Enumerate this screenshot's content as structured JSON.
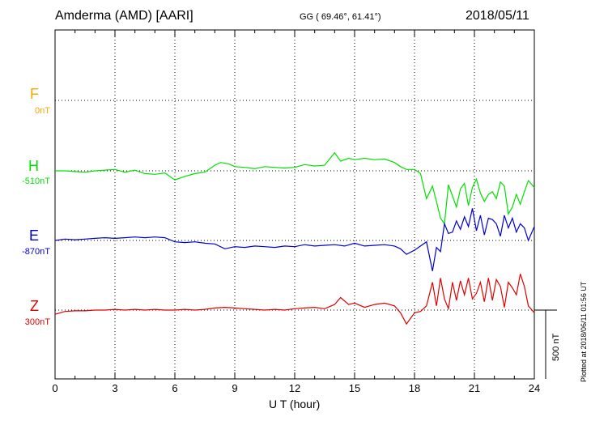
{
  "header": {
    "station": "Amderma (AMD)  [AARI]",
    "coords": "GG ( 69.46°,  61.41°)",
    "date": "2018/05/11"
  },
  "plotted_note": "Plotted at 2018/06/11 01:56 UT",
  "colors": {
    "F": "#f5a800",
    "H": "#00e000",
    "E": "#0000d0",
    "Z": "#e00000"
  },
  "chart_data": {
    "type": "line",
    "xlabel": "U T (hour)",
    "xlim": [
      0,
      24
    ],
    "x_ticks": [
      "0",
      "3",
      "6",
      "9",
      "12",
      "15",
      "18",
      "21",
      "24"
    ],
    "scale_bar_label": "500 nT",
    "components": [
      {
        "name": "F",
        "baseline": "0nT"
      },
      {
        "name": "H",
        "baseline": "-510nT"
      },
      {
        "name": "E",
        "baseline": "-870nT"
      },
      {
        "name": "Z",
        "baseline": "300nT"
      }
    ],
    "series": [
      {
        "name": "H",
        "x": [
          0,
          0.5,
          1,
          1.5,
          2,
          2.5,
          3,
          3.5,
          4,
          4.5,
          5,
          5.5,
          6,
          6.5,
          7,
          7.5,
          8,
          8.3,
          8.7,
          9,
          9.5,
          10,
          10.5,
          11,
          11.5,
          12,
          12.5,
          13,
          13.5,
          14,
          14.3,
          14.7,
          15,
          15.5,
          16,
          16.5,
          17,
          17.3,
          17.6,
          18,
          18.3,
          18.6,
          18.9,
          19.1,
          19.3,
          19.5,
          19.7,
          19.9,
          20.1,
          20.3,
          20.5,
          20.7,
          20.9,
          21.1,
          21.3,
          21.5,
          21.7,
          21.9,
          22.1,
          22.3,
          22.5,
          22.7,
          22.9,
          23.1,
          23.3,
          23.5,
          23.7,
          24
        ],
        "values": [
          0,
          0,
          -5,
          -10,
          0,
          5,
          10,
          -10,
          5,
          -20,
          -25,
          -15,
          -65,
          -40,
          -20,
          -10,
          40,
          60,
          50,
          30,
          25,
          15,
          30,
          25,
          20,
          25,
          45,
          35,
          40,
          130,
          70,
          90,
          80,
          90,
          80,
          85,
          60,
          30,
          10,
          10,
          -20,
          -200,
          -110,
          -220,
          -340,
          -380,
          -100,
          -180,
          -260,
          -130,
          -90,
          -250,
          -120,
          -60,
          -160,
          -220,
          -170,
          -150,
          -200,
          -80,
          -110,
          -310,
          -260,
          -170,
          -240,
          -150,
          -70,
          -120
        ]
      },
      {
        "name": "E",
        "x": [
          0,
          0.5,
          1,
          1.5,
          2,
          2.5,
          3,
          3.5,
          4,
          4.5,
          5,
          5.5,
          6,
          6.5,
          7,
          7.5,
          8,
          8.5,
          9,
          9.5,
          10,
          10.5,
          11,
          11.5,
          12,
          12.5,
          13,
          13.5,
          14,
          14.5,
          15,
          15.5,
          16,
          16.5,
          17,
          17.3,
          17.6,
          18,
          18.3,
          18.6,
          18.9,
          19.1,
          19.3,
          19.5,
          19.7,
          19.9,
          20.1,
          20.3,
          20.5,
          20.7,
          20.9,
          21.1,
          21.3,
          21.5,
          21.7,
          21.9,
          22.1,
          22.3,
          22.5,
          22.7,
          22.9,
          23.1,
          23.3,
          23.5,
          23.7,
          24
        ],
        "values": [
          0,
          10,
          5,
          10,
          15,
          20,
          15,
          20,
          25,
          20,
          25,
          20,
          -10,
          -15,
          -10,
          -20,
          -25,
          -60,
          -45,
          -50,
          -40,
          -45,
          -50,
          -40,
          -45,
          -30,
          -40,
          -35,
          -30,
          -40,
          -20,
          -40,
          -35,
          -30,
          -40,
          -60,
          -100,
          -70,
          -40,
          -10,
          -220,
          -50,
          -80,
          120,
          50,
          60,
          140,
          80,
          170,
          100,
          230,
          70,
          180,
          40,
          160,
          150,
          120,
          30,
          180,
          90,
          160,
          60,
          120,
          90,
          0,
          100
        ]
      },
      {
        "name": "Z",
        "x": [
          0,
          0.5,
          1,
          1.5,
          2,
          2.5,
          3,
          3.5,
          4,
          4.5,
          5,
          5.5,
          6,
          6.5,
          7,
          7.5,
          8,
          8.5,
          9,
          9.5,
          10,
          10.5,
          11,
          11.5,
          12,
          12.5,
          13,
          13.5,
          14,
          14.3,
          14.7,
          15,
          15.5,
          16,
          16.5,
          17,
          17.3,
          17.6,
          18,
          18.3,
          18.6,
          18.9,
          19.1,
          19.3,
          19.5,
          19.7,
          19.9,
          20.1,
          20.3,
          20.5,
          20.7,
          20.9,
          21.1,
          21.3,
          21.5,
          21.7,
          21.9,
          22.1,
          22.3,
          22.5,
          22.7,
          22.9,
          23.1,
          23.3,
          23.5,
          23.7,
          24
        ],
        "values": [
          -30,
          -10,
          -5,
          -5,
          0,
          0,
          5,
          0,
          5,
          0,
          5,
          0,
          0,
          5,
          0,
          5,
          15,
          20,
          15,
          10,
          5,
          0,
          5,
          0,
          10,
          15,
          20,
          10,
          40,
          90,
          40,
          50,
          20,
          40,
          50,
          30,
          -20,
          -100,
          -20,
          -10,
          30,
          200,
          30,
          230,
          80,
          10,
          200,
          70,
          210,
          110,
          230,
          80,
          120,
          200,
          60,
          230,
          70,
          220,
          170,
          20,
          200,
          160,
          110,
          260,
          170,
          30,
          -20
        ]
      }
    ]
  }
}
